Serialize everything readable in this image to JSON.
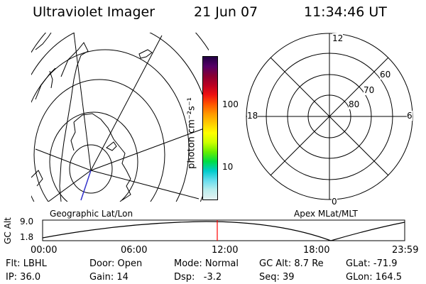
{
  "header": {
    "instrument": "Ultraviolet Imager",
    "date": "21 Jun 07",
    "time": "11:34:46 UT"
  },
  "geo_panel": {
    "label": "Geographic Lat/Lon"
  },
  "polar_panel": {
    "label": "Apex  MLat/MLT",
    "mlt_labels": [
      "12",
      "18",
      "6",
      "0"
    ],
    "mlat_labels": [
      "60",
      "70",
      "80"
    ]
  },
  "colorbar": {
    "unit_label": "photon cm⁻²s⁻¹",
    "tick_labels": [
      "100",
      "10"
    ],
    "scale": "log",
    "colors": [
      "#220044",
      "#550066",
      "#880033",
      "#bb0022",
      "#ee1111",
      "#ff5500",
      "#ff9900",
      "#ffcc00",
      "#ffff00",
      "#ccff00",
      "#66ee00",
      "#00dd44",
      "#00cccc",
      "#66ddee",
      "#bbeeee",
      "#e6f2f2"
    ]
  },
  "altitude_strip": {
    "y_label": "GC Alt",
    "y_ticks": [
      "9.0",
      "1.8"
    ],
    "x_ticks": [
      "00:00",
      "06:00",
      "12:00",
      "18:00",
      "23:59"
    ],
    "current_time_marker_color": "#ff0000"
  },
  "status": {
    "row1": {
      "filter": "Flt: LBHL",
      "door": "Door: Open",
      "mode": "Mode: Normal",
      "gc_alt": "GC Alt: 8.7 Re",
      "glat": "GLat: -71.9"
    },
    "row2": {
      "ip": "IP: 36.0",
      "gain": "Gain: 14",
      "dsp": "Dsp:   -3.2",
      "seq": "Seq: 39",
      "glon": "GLon: 164.5"
    }
  }
}
